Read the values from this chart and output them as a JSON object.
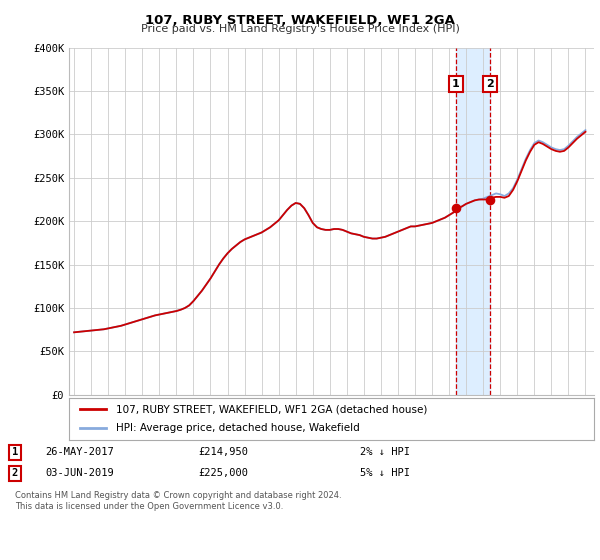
{
  "title": "107, RUBY STREET, WAKEFIELD, WF1 2GA",
  "subtitle": "Price paid vs. HM Land Registry's House Price Index (HPI)",
  "background_color": "#ffffff",
  "plot_bg_color": "#ffffff",
  "grid_color": "#cccccc",
  "ylim": [
    0,
    400000
  ],
  "yticks": [
    0,
    50000,
    100000,
    150000,
    200000,
    250000,
    300000,
    350000,
    400000
  ],
  "ytick_labels": [
    "£0",
    "£50K",
    "£100K",
    "£150K",
    "£200K",
    "£250K",
    "£300K",
    "£350K",
    "£400K"
  ],
  "xlim_start": 1994.7,
  "xlim_end": 2025.5,
  "xticks": [
    1995,
    1996,
    1997,
    1998,
    1999,
    2000,
    2001,
    2002,
    2003,
    2004,
    2005,
    2006,
    2007,
    2008,
    2009,
    2010,
    2011,
    2012,
    2013,
    2014,
    2015,
    2016,
    2017,
    2018,
    2019,
    2020,
    2021,
    2022,
    2023,
    2024,
    2025
  ],
  "sale1_x": 2017.4,
  "sale1_y": 214950,
  "sale1_label": "1",
  "sale1_date": "26-MAY-2017",
  "sale1_price": "£214,950",
  "sale1_hpi": "2% ↓ HPI",
  "sale2_x": 2019.4,
  "sale2_y": 225000,
  "sale2_label": "2",
  "sale2_date": "03-JUN-2019",
  "sale2_price": "£225,000",
  "sale2_hpi": "5% ↓ HPI",
  "red_line_color": "#cc0000",
  "blue_line_color": "#88aadd",
  "sale_marker_color": "#cc0000",
  "shade_color": "#ddeeff",
  "legend_label_red": "107, RUBY STREET, WAKEFIELD, WF1 2GA (detached house)",
  "legend_label_blue": "HPI: Average price, detached house, Wakefield",
  "footer_line1": "Contains HM Land Registry data © Crown copyright and database right 2024.",
  "footer_line2": "This data is licensed under the Open Government Licence v3.0.",
  "years_hpi": [
    1995.0,
    1995.25,
    1995.5,
    1995.75,
    1996.0,
    1996.25,
    1996.5,
    1996.75,
    1997.0,
    1997.25,
    1997.5,
    1997.75,
    1998.0,
    1998.25,
    1998.5,
    1998.75,
    1999.0,
    1999.25,
    1999.5,
    1999.75,
    2000.0,
    2000.25,
    2000.5,
    2000.75,
    2001.0,
    2001.25,
    2001.5,
    2001.75,
    2002.0,
    2002.25,
    2002.5,
    2002.75,
    2003.0,
    2003.25,
    2003.5,
    2003.75,
    2004.0,
    2004.25,
    2004.5,
    2004.75,
    2005.0,
    2005.25,
    2005.5,
    2005.75,
    2006.0,
    2006.25,
    2006.5,
    2006.75,
    2007.0,
    2007.25,
    2007.5,
    2007.75,
    2008.0,
    2008.25,
    2008.5,
    2008.75,
    2009.0,
    2009.25,
    2009.5,
    2009.75,
    2010.0,
    2010.25,
    2010.5,
    2010.75,
    2011.0,
    2011.25,
    2011.5,
    2011.75,
    2012.0,
    2012.25,
    2012.5,
    2012.75,
    2013.0,
    2013.25,
    2013.5,
    2013.75,
    2014.0,
    2014.25,
    2014.5,
    2014.75,
    2015.0,
    2015.25,
    2015.5,
    2015.75,
    2016.0,
    2016.25,
    2016.5,
    2016.75,
    2017.0,
    2017.25,
    2017.5,
    2017.75,
    2018.0,
    2018.25,
    2018.5,
    2018.75,
    2019.0,
    2019.25,
    2019.5,
    2019.75,
    2020.0,
    2020.25,
    2020.5,
    2020.75,
    2021.0,
    2021.25,
    2021.5,
    2021.75,
    2022.0,
    2022.25,
    2022.5,
    2022.75,
    2023.0,
    2023.25,
    2023.5,
    2023.75,
    2024.0,
    2024.25,
    2024.5,
    2024.75,
    2025.0
  ],
  "hpi_values": [
    72000,
    72500,
    73000,
    73500,
    74000,
    74500,
    75000,
    75500,
    76500,
    77500,
    78500,
    79500,
    81000,
    82500,
    84000,
    85500,
    87000,
    88500,
    90000,
    91500,
    92500,
    93500,
    94500,
    95500,
    96500,
    98000,
    100000,
    103000,
    108000,
    114000,
    120000,
    127000,
    134000,
    142000,
    150000,
    157000,
    163000,
    168000,
    172000,
    176000,
    179000,
    181000,
    183000,
    185000,
    187000,
    190000,
    193000,
    197000,
    201000,
    207000,
    213000,
    218000,
    221000,
    220000,
    215000,
    207000,
    198000,
    193000,
    191000,
    190000,
    190000,
    191000,
    191000,
    190000,
    188000,
    186000,
    185000,
    184000,
    182000,
    181000,
    180000,
    180000,
    181000,
    182000,
    184000,
    186000,
    188000,
    190000,
    192000,
    194000,
    194000,
    195000,
    196000,
    197000,
    198000,
    200000,
    202000,
    204000,
    207000,
    210000,
    214000,
    217000,
    220000,
    222000,
    224000,
    225000,
    226000,
    228000,
    230000,
    232000,
    231000,
    229000,
    232000,
    238000,
    248000,
    260000,
    272000,
    282000,
    290000,
    293000,
    291000,
    288000,
    285000,
    283000,
    282000,
    283000,
    287000,
    292000,
    297000,
    301000,
    305000
  ],
  "red_values": [
    72000,
    72500,
    73000,
    73500,
    74000,
    74500,
    75000,
    75500,
    76500,
    77500,
    78500,
    79500,
    81000,
    82500,
    84000,
    85500,
    87000,
    88500,
    90000,
    91500,
    92500,
    93500,
    94500,
    95500,
    96500,
    98000,
    100000,
    103000,
    108000,
    114000,
    120000,
    127000,
    134000,
    142000,
    150000,
    157000,
    163000,
    168000,
    172000,
    176000,
    179000,
    181000,
    183000,
    185000,
    187000,
    190000,
    193000,
    197000,
    201000,
    207000,
    213000,
    218000,
    221000,
    220000,
    215000,
    207000,
    198000,
    193000,
    191000,
    190000,
    190000,
    191000,
    191000,
    190000,
    188000,
    186000,
    185000,
    184000,
    182000,
    181000,
    180000,
    180000,
    181000,
    182000,
    184000,
    186000,
    188000,
    190000,
    192000,
    194000,
    194000,
    195000,
    196000,
    197000,
    198000,
    200000,
    202000,
    204000,
    207000,
    210000,
    214950,
    217000,
    220000,
    222000,
    224000,
    225000,
    225000,
    225000,
    227000,
    228000,
    228000,
    227000,
    229000,
    236000,
    246000,
    258000,
    270000,
    280000,
    288000,
    291000,
    289000,
    286000,
    283000,
    281000,
    280000,
    281000,
    285000,
    290000,
    295000,
    299000,
    303000
  ]
}
